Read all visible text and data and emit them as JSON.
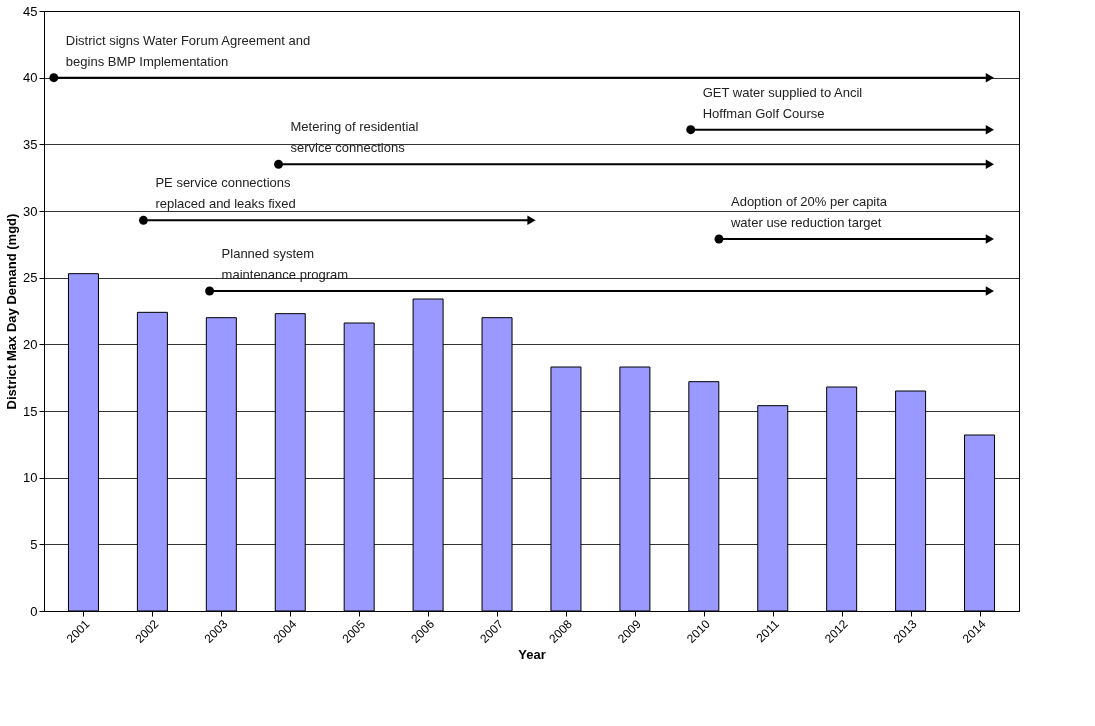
{
  "chart_data": {
    "type": "bar",
    "xlabel": "Year",
    "ylabel": "District Max Day Demand (mgd)",
    "x": [
      2001,
      2002,
      2003,
      2004,
      2005,
      2006,
      2007,
      2008,
      2009,
      2010,
      2011,
      2012,
      2013,
      2014
    ],
    "xlim": [
      2000.5,
      2014.5
    ],
    "xticks": [
      2001,
      2002,
      2003,
      2004,
      2005,
      2006,
      2007,
      2008,
      2009,
      2010,
      2011,
      2012,
      2013,
      2014
    ],
    "ylim": [
      0,
      45
    ],
    "yticks": [
      0,
      5,
      10,
      15,
      20,
      25,
      30,
      35,
      40,
      45
    ],
    "grid": "y",
    "series": [
      {
        "color": "#9999ff",
        "values": [
          25.3,
          22.4,
          22.0,
          22.3,
          21.6,
          23.4,
          22.0,
          18.3,
          18.3,
          17.2,
          15.4,
          16.8,
          16.5,
          13.2
        ]
      },
      {
        "type": "line",
        "color": "#000000",
        "marker": "circle",
        "x": [
          2000.57,
          2014.15
        ],
        "values": [
          40,
          40
        ]
      },
      {
        "type": "line",
        "color": "#000000",
        "marker": "circle",
        "x": [
          2009.81,
          2014.15
        ],
        "values": [
          36.1,
          36.1
        ]
      },
      {
        "type": "line",
        "color": "#000000",
        "marker": "circle",
        "x": [
          2003.83,
          2014.15
        ],
        "values": [
          33.5,
          33.5
        ]
      },
      {
        "type": "line",
        "color": "#000000",
        "marker": "circle",
        "x": [
          2001.87,
          2007.5
        ],
        "values": [
          29.3,
          29.3
        ]
      },
      {
        "type": "line",
        "color": "#000000",
        "marker": "circle",
        "x": [
          2010.22,
          2014.15
        ],
        "values": [
          27.9,
          27.9
        ]
      },
      {
        "type": "line",
        "color": "#000000",
        "marker": "circle",
        "x": [
          2002.83,
          2014.15
        ],
        "values": [
          24.0,
          24.0
        ]
      }
    ],
    "annotations": [
      {
        "text": "District signs Water Forum Agreement and\nbegins BMP Implementation",
        "x": 2000.57,
        "y": 40
      },
      {
        "text": "GET water supplied to Ancil\nHoffman Golf Course",
        "x": 2009.81,
        "y": 36.1
      },
      {
        "text": "Metering of residential\nservice connections",
        "x": 2003.83,
        "y": 33.5
      },
      {
        "text": "PE service connections\nreplaced and  leaks fixed",
        "x": 2001.87,
        "y": 29.3
      },
      {
        "text": "Adoption of 20% per capita\nwater use reduction target",
        "x": 2010.22,
        "y": 27.9
      },
      {
        "text": "Planned system\nmaintenance program",
        "x": 2002.83,
        "y": 24.0
      }
    ]
  }
}
